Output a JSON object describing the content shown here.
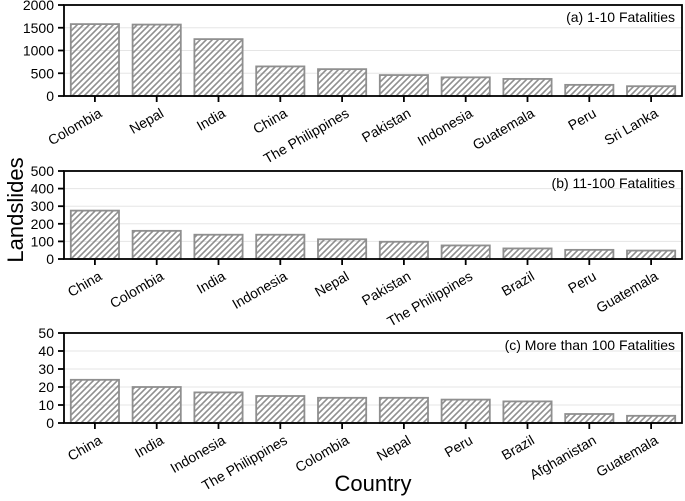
{
  "figure": {
    "ylabel": "Landslides",
    "xlabel": "Country",
    "background": "#ffffff",
    "colors": {
      "axis": "#000000",
      "text": "#000000",
      "grid": "#e5e5e5",
      "bar_edge": "#8f8f8f",
      "bar_hatch": "#8f8f8f",
      "bar_fill": "none"
    }
  },
  "chart_data": [
    {
      "type": "bar",
      "panel_label": "(a) 1-10 Fatalities",
      "categories": [
        "Colombia",
        "Nepal",
        "India",
        "China",
        "The Philippines",
        "Pakistan",
        "Indonesia",
        "Guatemala",
        "Peru",
        "Sri Lanka"
      ],
      "values": [
        1580,
        1570,
        1250,
        650,
        590,
        460,
        410,
        375,
        245,
        215
      ],
      "ylim": [
        0,
        2000
      ],
      "ytick_step": 500,
      "yticks": [
        0,
        500,
        1000,
        1500,
        2000
      ],
      "grid": "horizontal",
      "hatch": "///",
      "legend": "none"
    },
    {
      "type": "bar",
      "panel_label": "(b) 11-100 Fatalities",
      "categories": [
        "China",
        "Colombia",
        "India",
        "Indonesia",
        "Nepal",
        "Pakistan",
        "The Philippines",
        "Brazil",
        "Peru",
        "Guatemala"
      ],
      "values": [
        275,
        160,
        138,
        138,
        112,
        98,
        77,
        60,
        52,
        48
      ],
      "ylim": [
        0,
        500
      ],
      "ytick_step": 100,
      "yticks": [
        0,
        100,
        200,
        300,
        400,
        500
      ],
      "grid": "horizontal",
      "hatch": "///",
      "legend": "none"
    },
    {
      "type": "bar",
      "panel_label": "(c) More than 100 Fatalities",
      "categories": [
        "China",
        "India",
        "Indonesia",
        "The Philippines",
        "Colombia",
        "Nepal",
        "Peru",
        "Brazil",
        "Afghanistan",
        "Guatemala"
      ],
      "values": [
        24,
        20,
        17,
        15,
        14,
        14,
        13,
        12,
        5,
        4
      ],
      "ylim": [
        0,
        50
      ],
      "ytick_step": 10,
      "yticks": [
        0,
        10,
        20,
        30,
        40,
        50
      ],
      "grid": "horizontal",
      "hatch": "///",
      "legend": "none"
    }
  ]
}
